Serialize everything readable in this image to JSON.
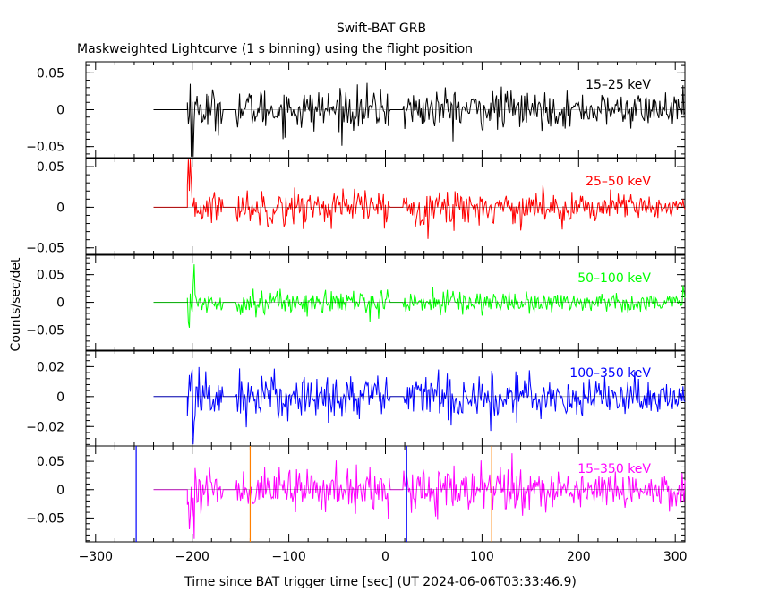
{
  "chart_data": {
    "type": "line",
    "title": "Swift-BAT GRB",
    "subtitle": "Maskweighted Lightcurve (1 s binning) using the flight position",
    "xlabel": "Time since BAT trigger time [sec] (UT 2024-06-06T03:33:46.9)",
    "ylabel": "Counts/sec/det",
    "xlim": [
      -310,
      310
    ],
    "x_ticks": [
      -300,
      -200,
      -100,
      0,
      100,
      200,
      300
    ],
    "x_tick_labels": [
      "−300",
      "−200",
      "−100",
      "0",
      "100",
      "200",
      "300"
    ],
    "data_start": -240,
    "data_end": 310,
    "burst_start": -205,
    "gaps": [
      [
        -168,
        -155
      ],
      [
        5,
        18
      ]
    ],
    "panels": [
      {
        "name": "15–25 keV",
        "color": "#000000",
        "ylim": [
          -0.065,
          0.065
        ],
        "y_ticks": [
          -0.05,
          0,
          0.05
        ],
        "y_tick_labels": [
          "−0.05",
          "0",
          "0.05"
        ],
        "amplitude": 0.014
      },
      {
        "name": "25–50 keV",
        "color": "#ff0000",
        "ylim": [
          -0.058,
          0.06
        ],
        "y_ticks": [
          -0.05,
          0,
          0.05
        ],
        "y_tick_labels": [
          "−0.05",
          "0",
          "0.05"
        ],
        "amplitude": 0.011
      },
      {
        "name": "50–100 keV",
        "color": "#00ff00",
        "ylim": [
          -0.088,
          0.085
        ],
        "y_ticks": [
          -0.05,
          0,
          0.05
        ],
        "y_tick_labels": [
          "−0.05",
          "0",
          "0.05"
        ],
        "amplitude": 0.011
      },
      {
        "name": "100–350 keV",
        "color": "#0000ff",
        "ylim": [
          -0.033,
          0.031
        ],
        "y_ticks": [
          -0.02,
          0,
          0.02
        ],
        "y_tick_labels": [
          "−0.02",
          "0",
          "0.02"
        ],
        "amplitude": 0.008
      },
      {
        "name": "15–350 keV",
        "color": "#ff00ff",
        "ylim": [
          -0.092,
          0.077
        ],
        "y_ticks": [
          -0.05,
          0,
          0.05
        ],
        "y_tick_labels": [
          "−0.05",
          "0",
          "0.05"
        ],
        "amplitude": 0.019
      }
    ],
    "markers": [
      {
        "x": -258,
        "color": "#0000ff"
      },
      {
        "x": -140,
        "color": "#ff8000"
      },
      {
        "x": 22,
        "color": "#0000ff"
      },
      {
        "x": 110,
        "color": "#ff8000"
      }
    ]
  }
}
